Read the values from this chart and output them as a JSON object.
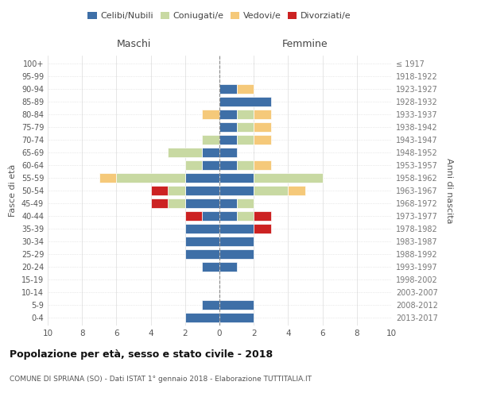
{
  "age_groups": [
    "0-4",
    "5-9",
    "10-14",
    "15-19",
    "20-24",
    "25-29",
    "30-34",
    "35-39",
    "40-44",
    "45-49",
    "50-54",
    "55-59",
    "60-64",
    "65-69",
    "70-74",
    "75-79",
    "80-84",
    "85-89",
    "90-94",
    "95-99",
    "100+"
  ],
  "birth_years": [
    "2013-2017",
    "2008-2012",
    "2003-2007",
    "1998-2002",
    "1993-1997",
    "1988-1992",
    "1983-1987",
    "1978-1982",
    "1973-1977",
    "1968-1972",
    "1963-1967",
    "1958-1962",
    "1953-1957",
    "1948-1952",
    "1943-1947",
    "1938-1942",
    "1933-1937",
    "1928-1932",
    "1923-1927",
    "1918-1922",
    "≤ 1917"
  ],
  "colors": {
    "celibi": "#3e6fa7",
    "coniugati": "#c8d9a2",
    "vedovi": "#f5c97a",
    "divorziati": "#cc2222"
  },
  "maschi": {
    "celibi": [
      2,
      1,
      0,
      0,
      1,
      2,
      2,
      2,
      1,
      2,
      2,
      2,
      1,
      1,
      0,
      0,
      0,
      0,
      0,
      0,
      0
    ],
    "coniugati": [
      0,
      0,
      0,
      0,
      0,
      0,
      0,
      0,
      0,
      1,
      1,
      4,
      1,
      2,
      1,
      0,
      0,
      0,
      0,
      0,
      0
    ],
    "vedovi": [
      0,
      0,
      0,
      0,
      0,
      0,
      0,
      0,
      0,
      0,
      0,
      1,
      0,
      0,
      0,
      0,
      1,
      0,
      0,
      0,
      0
    ],
    "divorziati": [
      0,
      0,
      0,
      0,
      0,
      0,
      0,
      0,
      1,
      1,
      1,
      0,
      0,
      0,
      0,
      0,
      0,
      0,
      0,
      0,
      0
    ]
  },
  "femmine": {
    "celibi": [
      2,
      2,
      0,
      0,
      1,
      2,
      2,
      2,
      1,
      1,
      2,
      2,
      1,
      1,
      1,
      1,
      1,
      3,
      1,
      0,
      0
    ],
    "coniugati": [
      0,
      0,
      0,
      0,
      0,
      0,
      0,
      0,
      1,
      1,
      2,
      4,
      1,
      0,
      1,
      1,
      1,
      0,
      0,
      0,
      0
    ],
    "vedovi": [
      0,
      0,
      0,
      0,
      0,
      0,
      0,
      0,
      0,
      0,
      1,
      0,
      1,
      0,
      1,
      1,
      1,
      0,
      1,
      0,
      0
    ],
    "divorziati": [
      0,
      0,
      0,
      0,
      0,
      0,
      0,
      1,
      1,
      0,
      0,
      0,
      0,
      0,
      0,
      0,
      0,
      0,
      0,
      0,
      0
    ]
  },
  "title": "Popolazione per età, sesso e stato civile - 2018",
  "subtitle": "COMUNE DI SPRIANA (SO) - Dati ISTAT 1° gennaio 2018 - Elaborazione TUTTITALIA.IT",
  "ylabel_left": "Fasce di età",
  "ylabel_right": "Anni di nascita",
  "xlabel_left": "Maschi",
  "xlabel_right": "Femmine"
}
